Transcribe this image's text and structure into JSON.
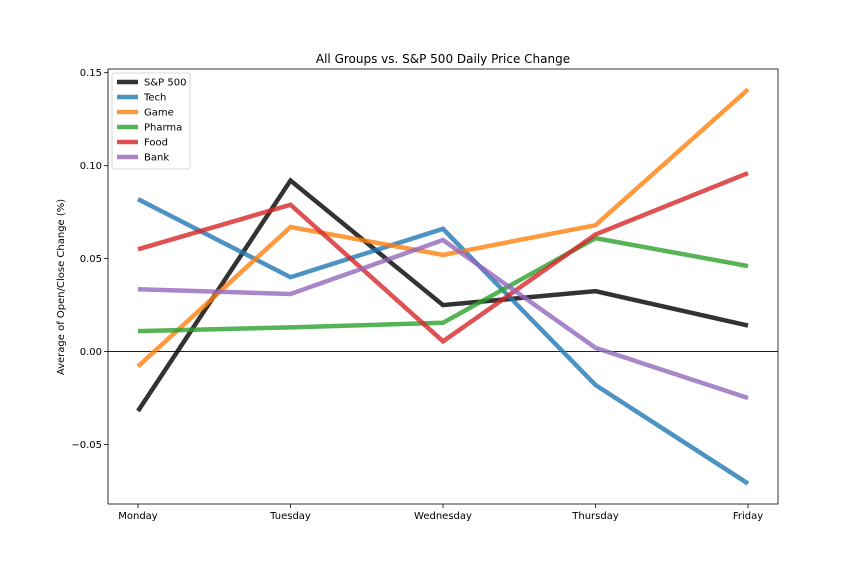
{
  "chart_data": {
    "type": "line",
    "title": "All Groups vs. S&P 500 Daily Price Change",
    "xlabel": "",
    "ylabel": "Average of Open/Close Change (%)",
    "categories": [
      "Monday",
      "Tuesday",
      "Wednesday",
      "Thursday",
      "Friday"
    ],
    "ylim": [
      -0.082,
      0.152
    ],
    "yticks": [
      -0.05,
      0.0,
      0.05,
      0.1,
      0.15
    ],
    "ytick_labels": [
      "−0.05",
      "0.00",
      "0.05",
      "0.10",
      "0.15"
    ],
    "zero_line": true,
    "grid": false,
    "legend_position": "top-left",
    "series": [
      {
        "name": "S&P 500",
        "color": "#000000",
        "values": [
          -0.032,
          0.092,
          0.025,
          0.0325,
          0.014
        ]
      },
      {
        "name": "Tech",
        "color": "#1f77b4",
        "values": [
          0.082,
          0.04,
          0.066,
          -0.018,
          -0.071
        ]
      },
      {
        "name": "Game",
        "color": "#ff7f0e",
        "values": [
          -0.008,
          0.067,
          0.052,
          0.068,
          0.141
        ]
      },
      {
        "name": "Pharma",
        "color": "#2ca02c",
        "values": [
          0.011,
          0.013,
          0.0155,
          0.061,
          0.046
        ]
      },
      {
        "name": "Food",
        "color": "#d62728",
        "values": [
          0.055,
          0.079,
          0.0055,
          0.063,
          0.096
        ]
      },
      {
        "name": "Bank",
        "color": "#9467bd",
        "values": [
          0.0335,
          0.031,
          0.06,
          0.002,
          -0.025
        ]
      }
    ]
  }
}
